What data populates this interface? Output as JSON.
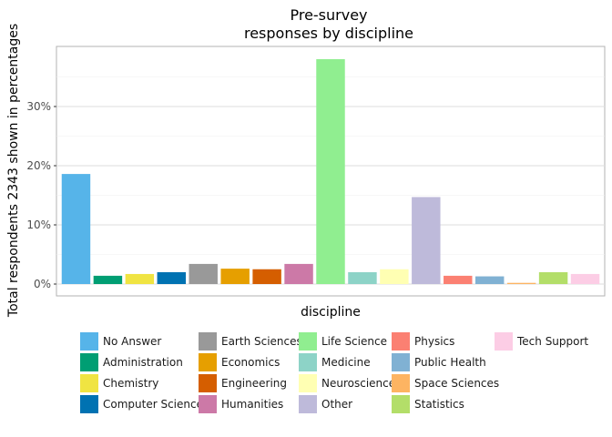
{
  "chart_data": {
    "type": "bar",
    "title": "Pre-survey",
    "subtitle": "responses by discipline",
    "xlabel": "discipline",
    "ylabel": "Total respondents 2343 shown in percentages",
    "y_ticks": [
      "0%",
      "10%",
      "20%",
      "30%"
    ],
    "ylim": [
      0,
      40
    ],
    "grid": true,
    "legend_position": "bottom",
    "categories": [
      "No Answer",
      "Administration",
      "Chemistry",
      "Computer Science",
      "Earth Sciences",
      "Economics",
      "Engineering",
      "Humanities",
      "Life Science",
      "Medicine",
      "Neuroscience",
      "Other",
      "Physics",
      "Public Health",
      "Space Sciences",
      "Statistics",
      "Tech Support"
    ],
    "values": [
      18.6,
      1.4,
      1.7,
      2.0,
      3.4,
      2.6,
      2.5,
      3.4,
      38.0,
      2.0,
      2.5,
      14.7,
      1.4,
      1.3,
      0.2,
      2.0,
      1.7
    ],
    "colors": [
      "#56B4E9",
      "#009E73",
      "#F0E442",
      "#0072B2",
      "#999999",
      "#E69F00",
      "#D55E00",
      "#CC79A7",
      "#90EE90",
      "#8DD3C7",
      "#FFFFB3",
      "#BEBADA",
      "#FB8072",
      "#80B1D3",
      "#FDB462",
      "#B3DE69",
      "#FCCDE5"
    ]
  }
}
